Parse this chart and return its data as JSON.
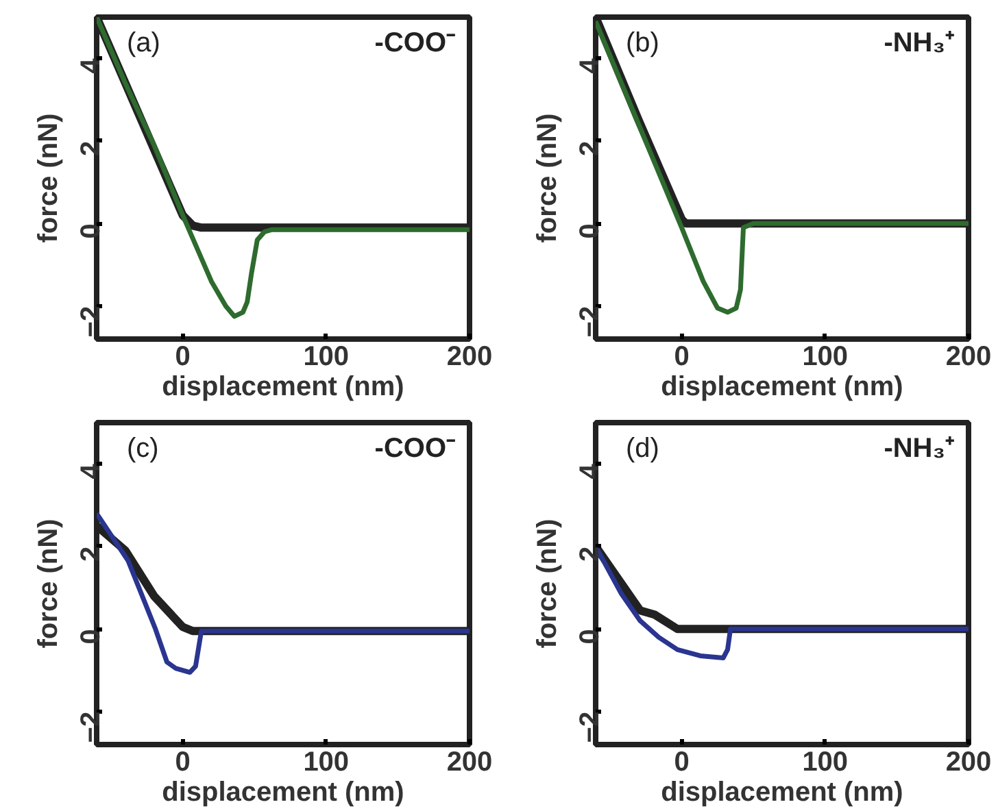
{
  "chart_data": [
    {
      "type": "line",
      "annotations": [
        "(a)",
        "-COO⁻"
      ],
      "xlabel": "displacement (nm)",
      "ylabel": "force (nN)",
      "xlim": [
        -60,
        200
      ],
      "ylim": [
        -2.8,
        5
      ],
      "xticks": [
        0,
        100,
        200
      ],
      "yticks": [
        -2,
        0,
        2,
        4
      ],
      "grid": false,
      "series": [
        {
          "color": "#222222",
          "x": [
            -60,
            -40,
            -20,
            0,
            7,
            13,
            200
          ],
          "values": [
            5.0,
            3.4,
            1.8,
            0.2,
            -0.05,
            -0.1,
            -0.1
          ]
        },
        {
          "color": "#2e6b2e",
          "x": [
            -60,
            -40,
            -20,
            0,
            20,
            30,
            36,
            42,
            45,
            48,
            52,
            57,
            62,
            200
          ],
          "values": [
            5.0,
            3.4,
            1.9,
            0.2,
            -1.4,
            -2.0,
            -2.25,
            -2.15,
            -1.9,
            -1.2,
            -0.4,
            -0.2,
            -0.15,
            -0.15
          ]
        }
      ]
    },
    {
      "type": "line",
      "annotations": [
        "(b)",
        "-NH₃⁺"
      ],
      "xlabel": "displacement (nm)",
      "ylabel": "force (nN)",
      "xlim": [
        -60,
        200
      ],
      "ylim": [
        -2.8,
        5
      ],
      "xticks": [
        0,
        100,
        200
      ],
      "yticks": [
        -2,
        0,
        2,
        4
      ],
      "grid": false,
      "series": [
        {
          "color": "#222222",
          "x": [
            -60,
            -30,
            0,
            3,
            200
          ],
          "values": [
            5.0,
            2.5,
            0.1,
            0,
            0
          ]
        },
        {
          "color": "#2e6b2e",
          "x": [
            -60,
            -30,
            0,
            15,
            25,
            32,
            38,
            41,
            43,
            50,
            200
          ],
          "values": [
            4.9,
            2.4,
            -0.1,
            -1.4,
            -2.05,
            -2.15,
            -2.05,
            -1.6,
            -0.1,
            0,
            0
          ]
        }
      ]
    },
    {
      "type": "line",
      "annotations": [
        "(c)",
        "-COO⁻"
      ],
      "xlabel": "displacement (nm)",
      "ylabel": "force (nN)",
      "xlim": [
        -60,
        200
      ],
      "ylim": [
        -2.8,
        5
      ],
      "xticks": [
        0,
        100,
        200
      ],
      "yticks": [
        -2,
        0,
        2,
        4
      ],
      "grid": false,
      "series": [
        {
          "color": "#222222",
          "x": [
            -60,
            -40,
            -20,
            0,
            7,
            200
          ],
          "values": [
            2.5,
            1.9,
            0.8,
            0.05,
            -0.05,
            -0.05
          ]
        },
        {
          "color": "#2a3590",
          "x": [
            -60,
            -38,
            -19,
            -11,
            -5,
            0,
            5,
            9,
            13,
            200
          ],
          "values": [
            2.8,
            1.65,
            0,
            -0.8,
            -0.95,
            -1.0,
            -1.05,
            -0.9,
            -0.05,
            -0.05
          ]
        }
      ]
    },
    {
      "type": "line",
      "annotations": [
        "(d)",
        "-NH₃⁺"
      ],
      "xlabel": "displacement (nm)",
      "ylabel": "force (nN)",
      "xlim": [
        -60,
        200
      ],
      "ylim": [
        -2.8,
        5
      ],
      "xticks": [
        0,
        100,
        200
      ],
      "yticks": [
        -2,
        0,
        2,
        4
      ],
      "grid": false,
      "series": [
        {
          "color": "#222222",
          "x": [
            -60,
            -29,
            -19,
            -3,
            200
          ],
          "values": [
            2.0,
            0.45,
            0.35,
            0,
            0
          ]
        },
        {
          "color": "#2a3590",
          "x": [
            -60,
            -42,
            -29,
            -16,
            -3,
            13,
            29,
            32,
            34,
            200
          ],
          "values": [
            2.0,
            0.85,
            0.2,
            -0.2,
            -0.5,
            -0.65,
            -0.7,
            -0.5,
            0,
            0
          ]
        }
      ]
    }
  ]
}
